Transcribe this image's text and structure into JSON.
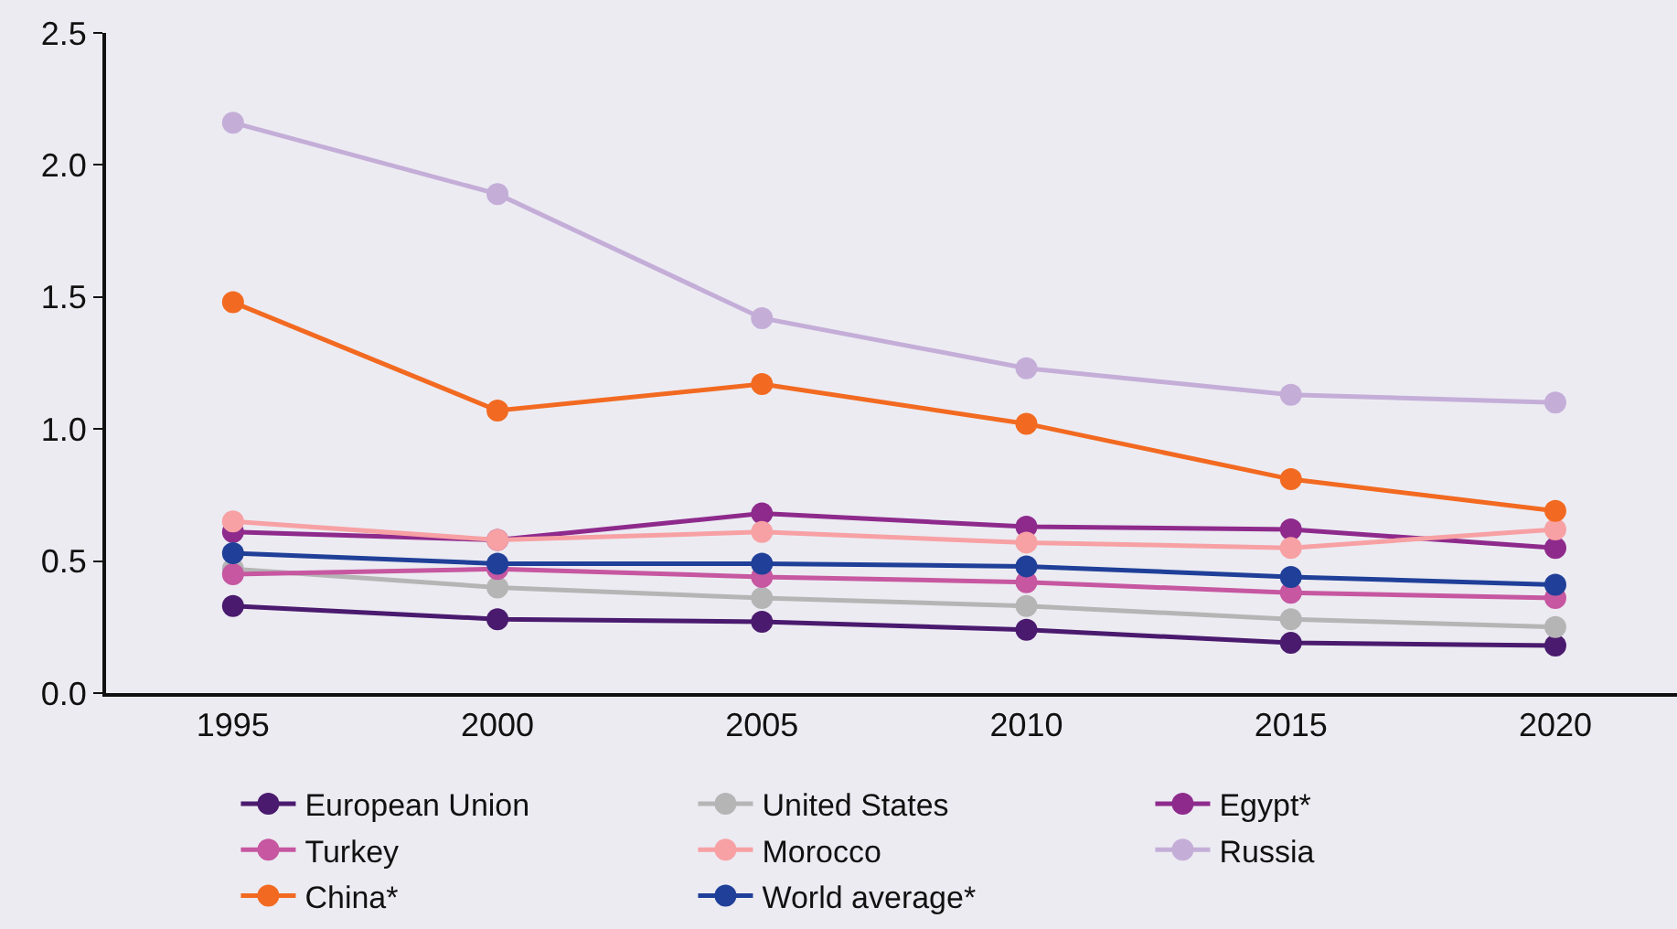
{
  "chart_data": {
    "type": "line",
    "x": [
      1995,
      2000,
      2005,
      2010,
      2015,
      2020
    ],
    "xlim": [
      1992.6,
      2022.3
    ],
    "xticks": [
      1995,
      2000,
      2005,
      2010,
      2015,
      2020
    ],
    "ylim": [
      0,
      2.5
    ],
    "yticks": [
      {
        "value": 0,
        "label": "0.0"
      },
      {
        "value": 0.5,
        "label": "0.5"
      },
      {
        "value": 1,
        "label": "1.0"
      },
      {
        "value": 1.5,
        "label": "1.5"
      },
      {
        "value": 2,
        "label": "2.0"
      },
      {
        "value": 2.5,
        "label": "2.5"
      }
    ],
    "grid": false,
    "legend": "bottom",
    "marker": "circle",
    "line_style": "solid",
    "series": [
      {
        "name": "European Union",
        "color": "#4a1a6e",
        "values": [
          0.33,
          0.28,
          0.27,
          0.24,
          0.19,
          0.18
        ]
      },
      {
        "name": "United States",
        "color": "#b5b5b5",
        "values": [
          0.47,
          0.4,
          0.36,
          0.33,
          0.28,
          0.25
        ]
      },
      {
        "name": "Egypt*",
        "color": "#8e2a8c",
        "values": [
          0.61,
          0.58,
          0.68,
          0.63,
          0.62,
          0.55
        ]
      },
      {
        "name": "Turkey",
        "color": "#c657a0",
        "values": [
          0.45,
          0.47,
          0.44,
          0.42,
          0.38,
          0.36
        ]
      },
      {
        "name": "Morocco",
        "color": "#f7a1a4",
        "values": [
          0.65,
          0.58,
          0.61,
          0.57,
          0.55,
          0.62
        ]
      },
      {
        "name": "Russia",
        "color": "#c4aed8",
        "values": [
          2.16,
          1.89,
          1.42,
          1.23,
          1.13,
          1.1
        ]
      },
      {
        "name": "China*",
        "color": "#f26a21",
        "values": [
          1.48,
          1.07,
          1.17,
          1.02,
          0.81,
          0.69
        ]
      },
      {
        "name": "World average*",
        "color": "#1f3f98",
        "values": [
          0.53,
          0.49,
          0.49,
          0.48,
          0.44,
          0.41
        ]
      }
    ]
  }
}
